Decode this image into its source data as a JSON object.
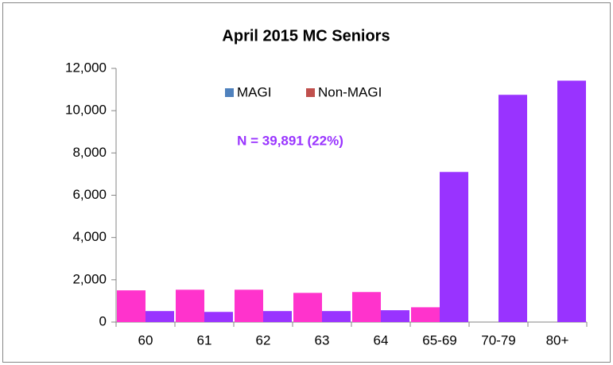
{
  "chart_data": {
    "type": "bar",
    "title": "April 2015 MC Seniors",
    "annotation": "N = 39,891 (22%)",
    "annotation_color": "#9933ff",
    "categories": [
      "60",
      "61",
      "62",
      "63",
      "64",
      "65-69",
      "70-79",
      "80+"
    ],
    "series": [
      {
        "name": "MAGI",
        "color": "#ff33cc",
        "legend_color": "#4f81bd",
        "values": [
          1500,
          1530,
          1530,
          1380,
          1420,
          700,
          null,
          null
        ]
      },
      {
        "name": "Non-MAGI",
        "color": "#9933ff",
        "legend_color": "#c0504d",
        "values": [
          520,
          480,
          520,
          520,
          560,
          7100,
          10750,
          11420
        ]
      }
    ],
    "ylim": [
      0,
      12000
    ],
    "yticks": [
      0,
      {
        "value": 2000,
        "label": "2,000"
      },
      {
        "value": 4000,
        "label": "4,000"
      },
      {
        "value": 6000,
        "label": "6,000"
      },
      {
        "value": 8000,
        "label": "8,000"
      },
      {
        "value": 10000,
        "label": "10,000"
      },
      {
        "value": 12000,
        "label": "12,000"
      }
    ],
    "grid": false
  }
}
